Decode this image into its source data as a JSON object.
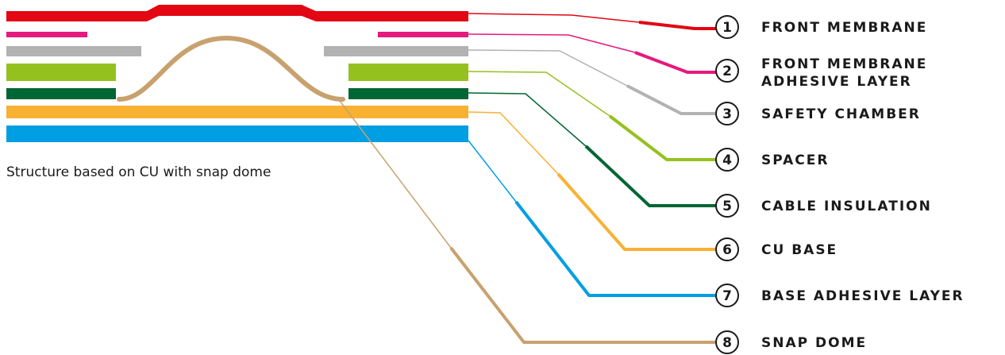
{
  "caption": "Structure based on CU with snap dome",
  "layers": [
    {
      "number": "1",
      "name": "front-membrane",
      "label_lines": [
        "FRONT MEMBRANE"
      ],
      "color": "#e30613"
    },
    {
      "number": "2",
      "name": "front-membrane-adhesive-layer",
      "label_lines": [
        "FRONT MEMBRANE",
        "ADHESIVE LAYER"
      ],
      "color": "#e6197d"
    },
    {
      "number": "3",
      "name": "safety-chamber",
      "label_lines": [
        "SAFETY CHAMBER"
      ],
      "color": "#b2b2b2"
    },
    {
      "number": "4",
      "name": "spacer",
      "label_lines": [
        "SPACER"
      ],
      "color": "#95c11f"
    },
    {
      "number": "5",
      "name": "cable-insulation",
      "label_lines": [
        "CABLE INSULATION"
      ],
      "color": "#006633"
    },
    {
      "number": "6",
      "name": "cu-base",
      "label_lines": [
        "CU BASE"
      ],
      "color": "#f8b133"
    },
    {
      "number": "7",
      "name": "base-adhesive-layer",
      "label_lines": [
        "BASE ADHESIVE LAYER"
      ],
      "color": "#009fe3"
    },
    {
      "number": "8",
      "name": "snap-dome",
      "label_lines": [
        "SNAP DOME"
      ],
      "color": "#c8a16e"
    }
  ]
}
